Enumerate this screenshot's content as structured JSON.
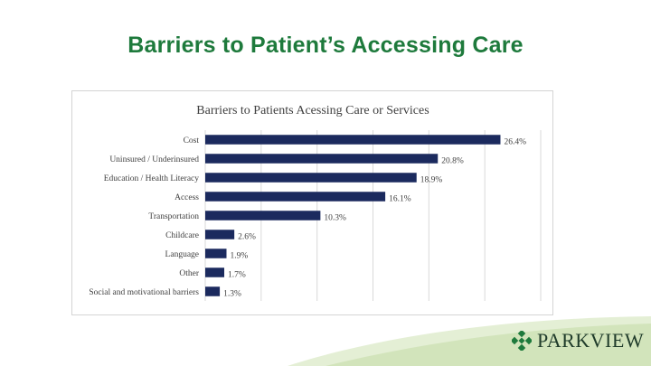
{
  "slide": {
    "title": "Barriers to Patient’s Accessing Care"
  },
  "brand": {
    "name": "PARKVIEW",
    "accent_green": "#1e7a3c",
    "swoosh_color": "#d7e6c2",
    "logo_icon": "parkview-diamond-icon"
  },
  "chart_data": {
    "type": "bar",
    "orientation": "horizontal",
    "title": "Barriers to Patients Acessing Care or Services",
    "categories": [
      "Cost",
      "Uninsured / Underinsured",
      "Education / Health Literacy",
      "Access",
      "Transportation",
      "Childcare",
      "Language",
      "Other",
      "Social and motivational barriers"
    ],
    "values": [
      26.4,
      20.8,
      18.9,
      16.1,
      10.3,
      2.6,
      1.9,
      1.7,
      1.3
    ],
    "value_labels": [
      "26.4%",
      "20.8%",
      "18.9%",
      "16.1%",
      "10.3%",
      "2.6%",
      "1.9%",
      "1.7%",
      "1.3%"
    ],
    "xlim": [
      0,
      30
    ],
    "grid": true,
    "bar_color": "#1b2a5e",
    "legend": "none"
  }
}
